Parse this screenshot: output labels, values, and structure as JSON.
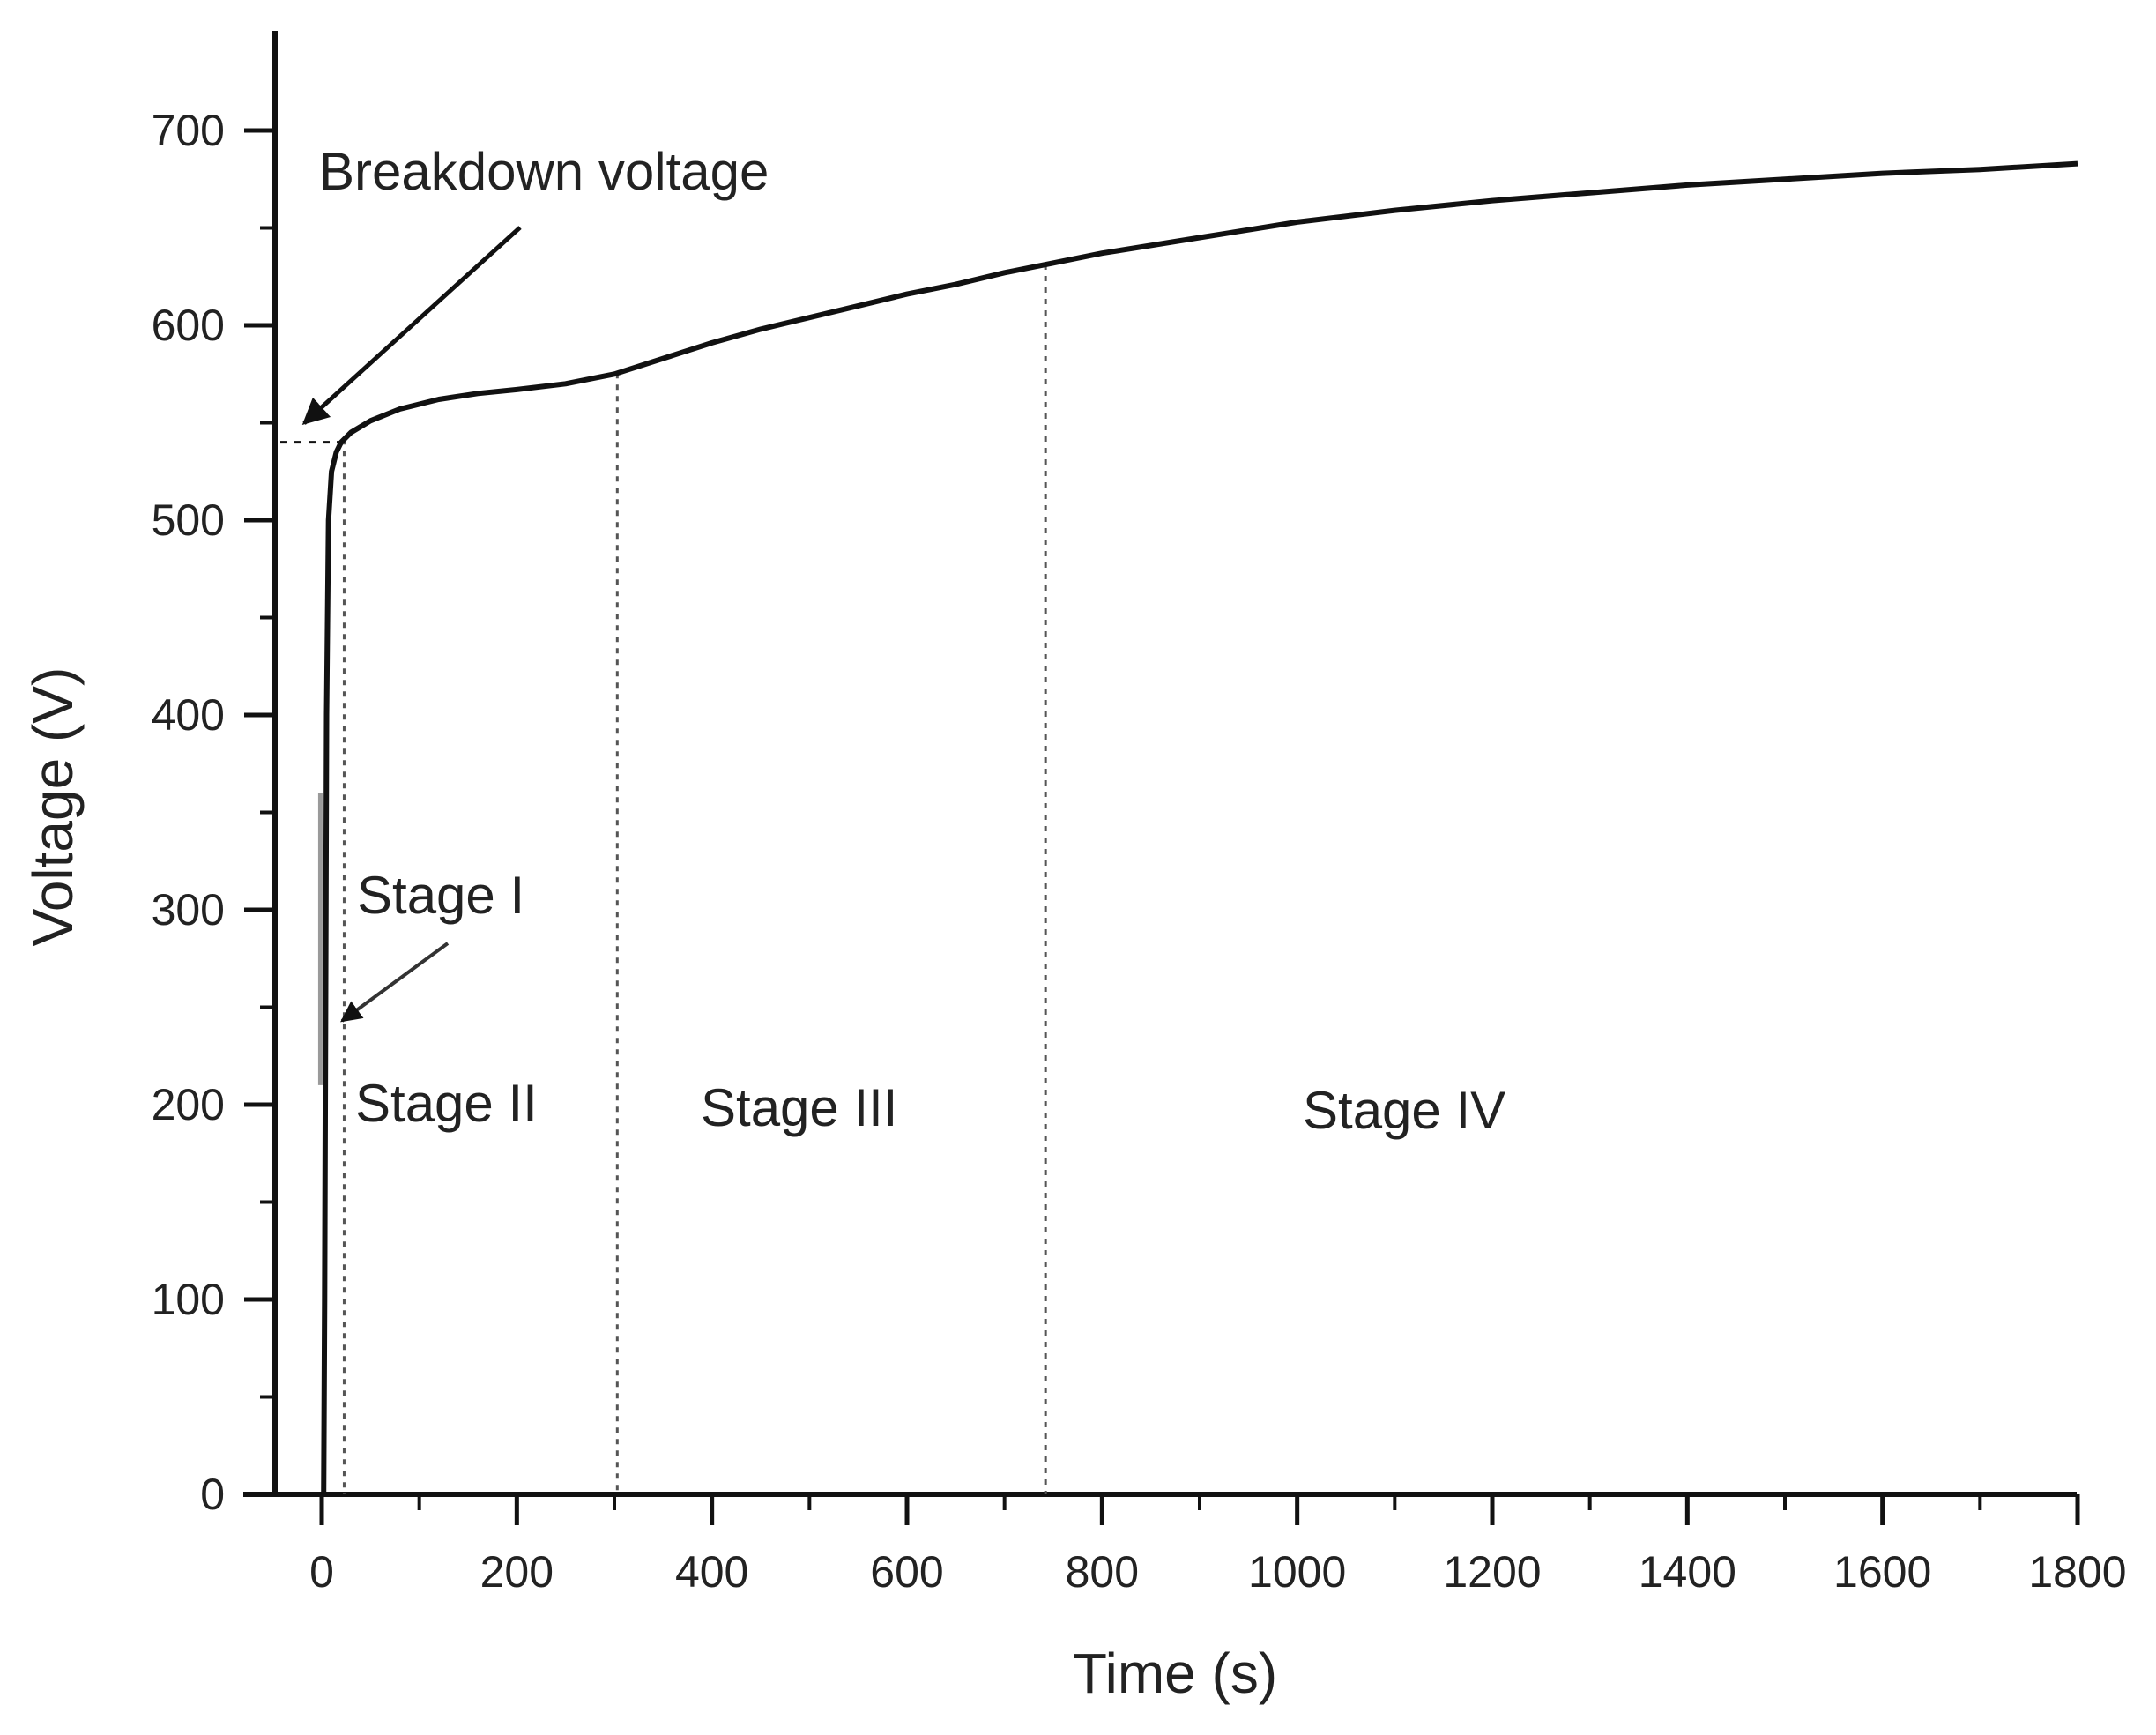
{
  "chart_data": {
    "type": "line",
    "title": "",
    "xlabel": "Time (s)",
    "ylabel": "Voltage (V)",
    "xlim": [
      -50,
      1800
    ],
    "ylim": [
      0,
      750
    ],
    "x_ticks": [
      0,
      200,
      400,
      600,
      800,
      1000,
      1200,
      1400,
      1600,
      1800
    ],
    "y_ticks": [
      0,
      100,
      200,
      300,
      400,
      500,
      600,
      700
    ],
    "grid": false,
    "legend": "none",
    "series": [
      {
        "color": "#111111",
        "points": [
          [
            2,
            0
          ],
          [
            3,
            100
          ],
          [
            4,
            250
          ],
          [
            5,
            400
          ],
          [
            7,
            500
          ],
          [
            10,
            525
          ],
          [
            15,
            535
          ],
          [
            20,
            540
          ],
          [
            30,
            545
          ],
          [
            50,
            551
          ],
          [
            80,
            557
          ],
          [
            120,
            562
          ],
          [
            160,
            565
          ],
          [
            200,
            567
          ],
          [
            250,
            570
          ],
          [
            300,
            575
          ],
          [
            350,
            583
          ],
          [
            400,
            591
          ],
          [
            450,
            598
          ],
          [
            500,
            604
          ],
          [
            550,
            610
          ],
          [
            600,
            616
          ],
          [
            650,
            621
          ],
          [
            700,
            627
          ],
          [
            750,
            632
          ],
          [
            800,
            637
          ],
          [
            850,
            641
          ],
          [
            900,
            645
          ],
          [
            950,
            649
          ],
          [
            1000,
            653
          ],
          [
            1100,
            659
          ],
          [
            1200,
            664
          ],
          [
            1300,
            668
          ],
          [
            1400,
            672
          ],
          [
            1500,
            675
          ],
          [
            1600,
            678
          ],
          [
            1700,
            680
          ],
          [
            1800,
            683
          ]
        ]
      }
    ],
    "breakdown_level": 540,
    "stage_boundaries": [
      23,
      303,
      742
    ],
    "annotations": {
      "breakdown": "Breakdown voltage",
      "stage1": "Stage I",
      "stage2": "Stage II",
      "stage3": "Stage III",
      "stage4": "Stage IV"
    }
  }
}
